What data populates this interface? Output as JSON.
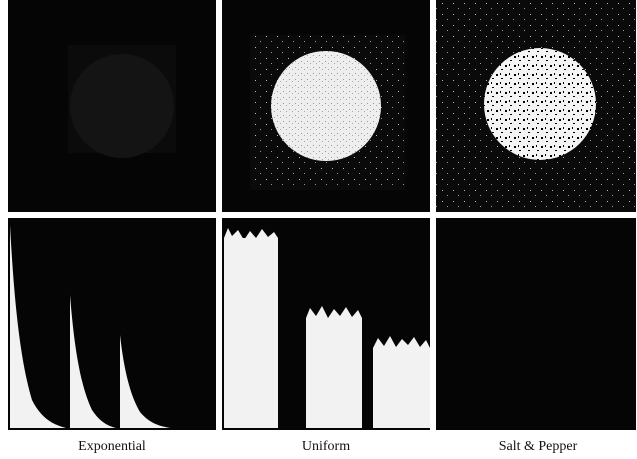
{
  "panels": [
    {
      "label": "Exponential"
    },
    {
      "label": "Uniform"
    },
    {
      "label": "Salt & Pepper"
    }
  ]
}
